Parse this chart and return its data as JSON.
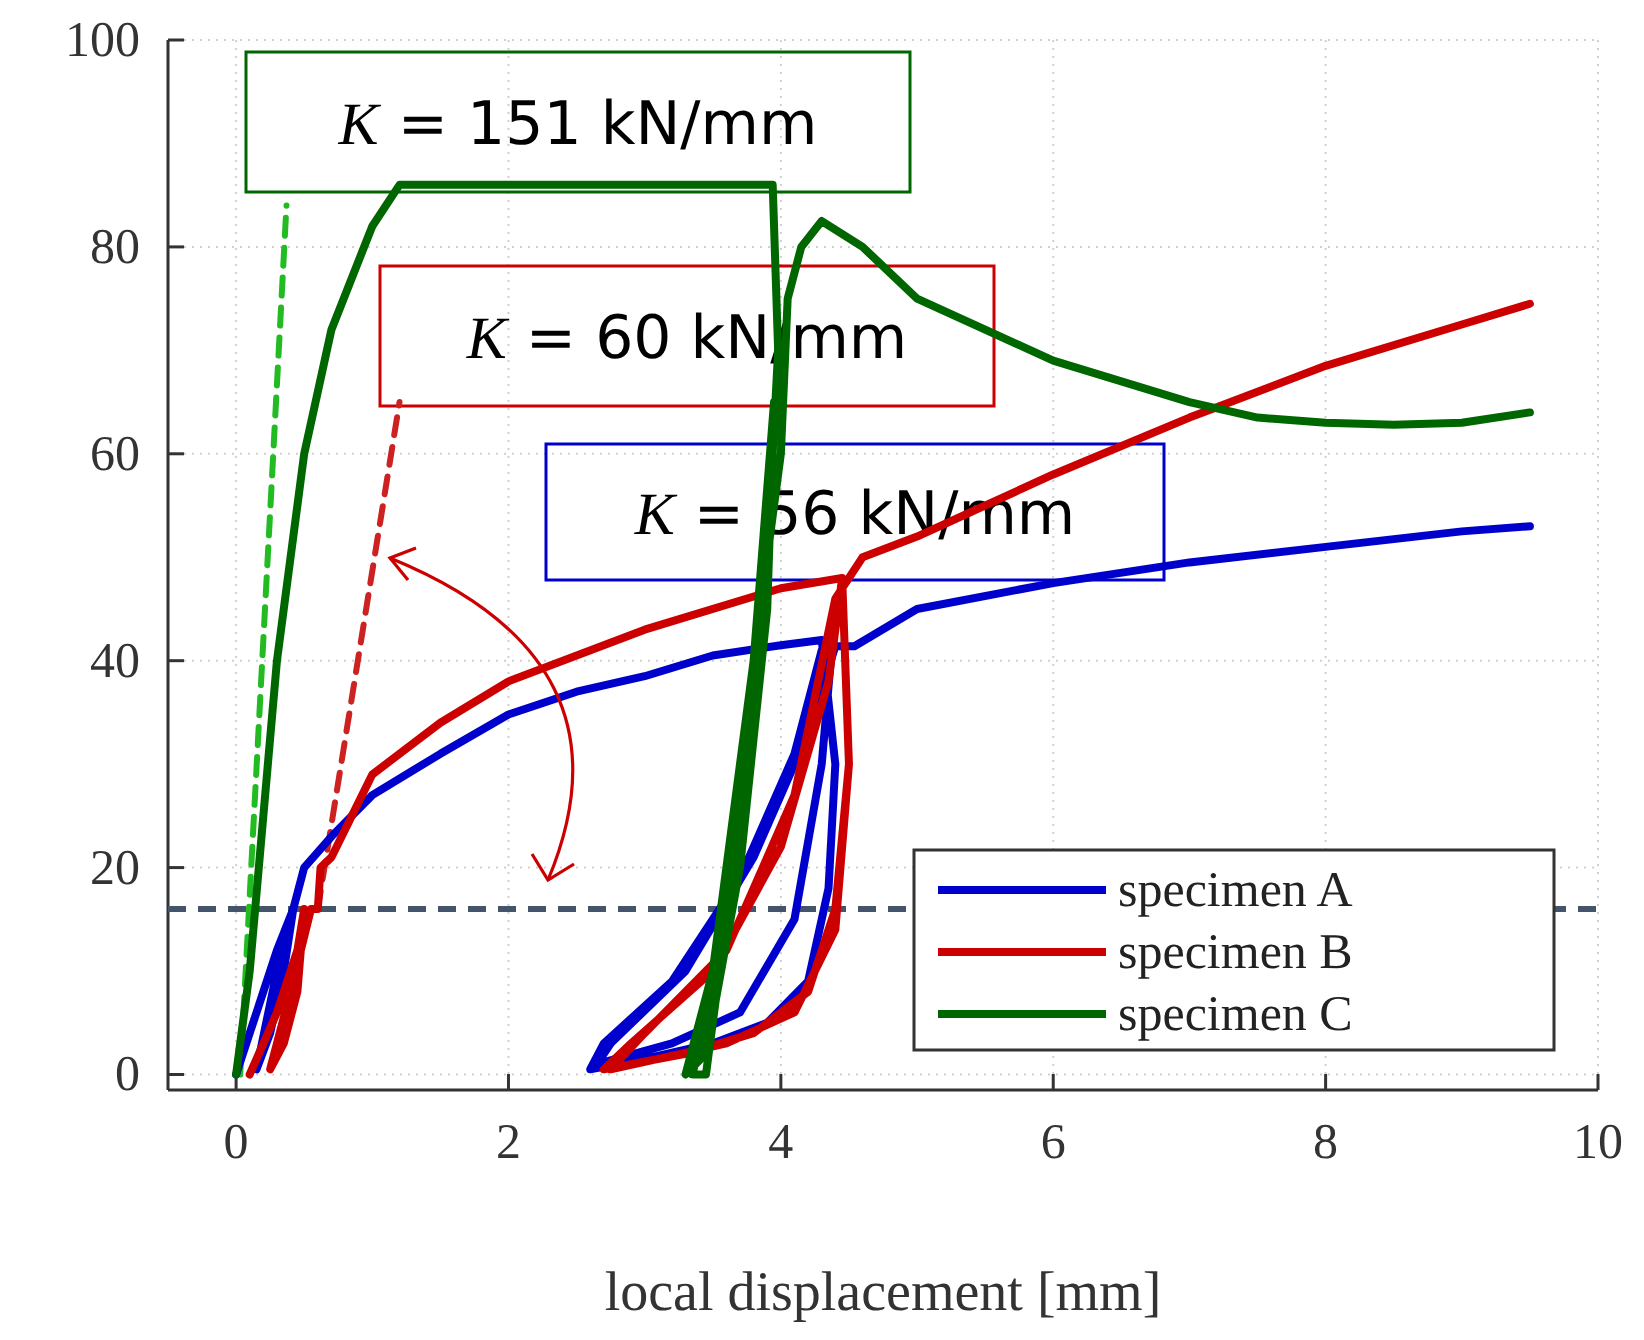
{
  "chart_data": {
    "type": "line",
    "xlabel": "local displacement [mm]",
    "xlim": [
      -0.5,
      10
    ],
    "ylim": [
      -1.5,
      100
    ],
    "xticks": [
      0,
      2,
      4,
      6,
      8,
      10
    ],
    "yticks": [
      0,
      20,
      40,
      60,
      80,
      100
    ],
    "grid": true,
    "legend": "bottom right",
    "line_style": "solid",
    "marker": "none",
    "series": [
      {
        "name": "specimen A",
        "color": "#0000cc",
        "x": [
          0,
          0.15,
          0.3,
          0.42,
          0.35,
          0.25,
          0.15,
          0.3,
          0.5,
          0.7,
          1,
          1.5,
          2,
          2.5,
          3,
          3.5,
          4,
          4.3,
          4.4,
          4.35,
          4.2,
          3.9,
          3.5,
          3,
          2.6,
          2.7,
          3.2,
          3.7,
          4.1,
          4.3,
          4.38,
          4.3,
          4.1,
          3.7,
          3.2,
          2.65,
          2.75,
          3.3,
          3.8,
          4.2,
          4.4,
          4.54,
          5,
          6,
          7,
          8,
          9,
          9.5
        ],
        "values": [
          0,
          6,
          12,
          16,
          10,
          4,
          0.5,
          10,
          20,
          23,
          27,
          31,
          34.8,
          37,
          38.5,
          40.5,
          41.5,
          42,
          30,
          18,
          9,
          5,
          3,
          1.5,
          0.5,
          3,
          9,
          19,
          31,
          41,
          42,
          30,
          15,
          6,
          3,
          1,
          3,
          10,
          21,
          33,
          41.4,
          41.4,
          45,
          47.5,
          49.5,
          51,
          52.5,
          53
        ]
      },
      {
        "name": "specimen B",
        "color": "#cc0000",
        "x": [
          0.1,
          0.3,
          0.45,
          0.5,
          0.45,
          0.35,
          0.25,
          0.4,
          0.55,
          0.6,
          0.62,
          0.7,
          1,
          1.5,
          2,
          3,
          4,
          4.45,
          4.5,
          4.4,
          4.2,
          3.8,
          3.3,
          2.9,
          2.7,
          2.9,
          3.5,
          4,
          4.35,
          4.45,
          4.5,
          4.4,
          4.1,
          3.6,
          3.1,
          2.75,
          3,
          3.6,
          4.1,
          4.4,
          4.6,
          5,
          6,
          7,
          7.22,
          8,
          9,
          9.5
        ],
        "values": [
          0,
          6,
          12,
          16,
          8,
          3,
          0.5,
          8,
          16,
          16,
          20,
          21,
          29,
          34,
          38,
          43,
          47,
          48,
          30,
          16,
          8,
          4,
          2,
          1,
          0.5,
          3,
          10,
          22,
          38,
          48,
          30,
          14,
          6,
          3,
          1.5,
          0.5,
          4,
          12,
          27,
          46,
          50,
          52,
          58,
          63.5,
          64.6,
          68.5,
          72.5,
          74.5
        ]
      },
      {
        "name": "specimen C",
        "color": "#006600",
        "x": [
          0,
          0.1,
          0.3,
          0.5,
          0.7,
          1,
          1.2,
          2,
          3,
          3.94,
          3.98,
          3.9,
          3.7,
          3.5,
          3.35,
          3.45,
          3.6,
          3.8,
          3.95,
          3.9,
          3.7,
          3.45,
          3.3,
          3.5,
          3.75,
          4,
          4.05,
          4.15,
          4.3,
          4.6,
          5,
          5.5,
          6,
          6.5,
          7,
          7.5,
          8,
          8.5,
          9,
          9.5
        ],
        "values": [
          0,
          10,
          40,
          60,
          72,
          82,
          86,
          86,
          86,
          86,
          70,
          50,
          25,
          8,
          0,
          0,
          15,
          40,
          65,
          45,
          20,
          2,
          0,
          10,
          35,
          60,
          75,
          80,
          82.5,
          80,
          75,
          72,
          69,
          67,
          65,
          63.5,
          63,
          62.8,
          63,
          64
        ]
      },
      {
        "type": "line",
        "line_style": "dashed",
        "color": "#22bb22",
        "x": [
          0.03,
          0.37
        ],
        "values": [
          0,
          84
        ]
      },
      {
        "type": "line",
        "line_style": "dashed",
        "color": "#cc2222",
        "x": [
          0.6,
          1.2
        ],
        "values": [
          16,
          65
        ]
      }
    ],
    "ref_lines": [
      {
        "axis": "y",
        "value": 16,
        "color": "#44546a",
        "line_style": "dashed"
      }
    ],
    "annotations": [
      "K = 56 kN/mm",
      "K = 60 kN/mm",
      "K = 151 kN/mm"
    ]
  }
}
